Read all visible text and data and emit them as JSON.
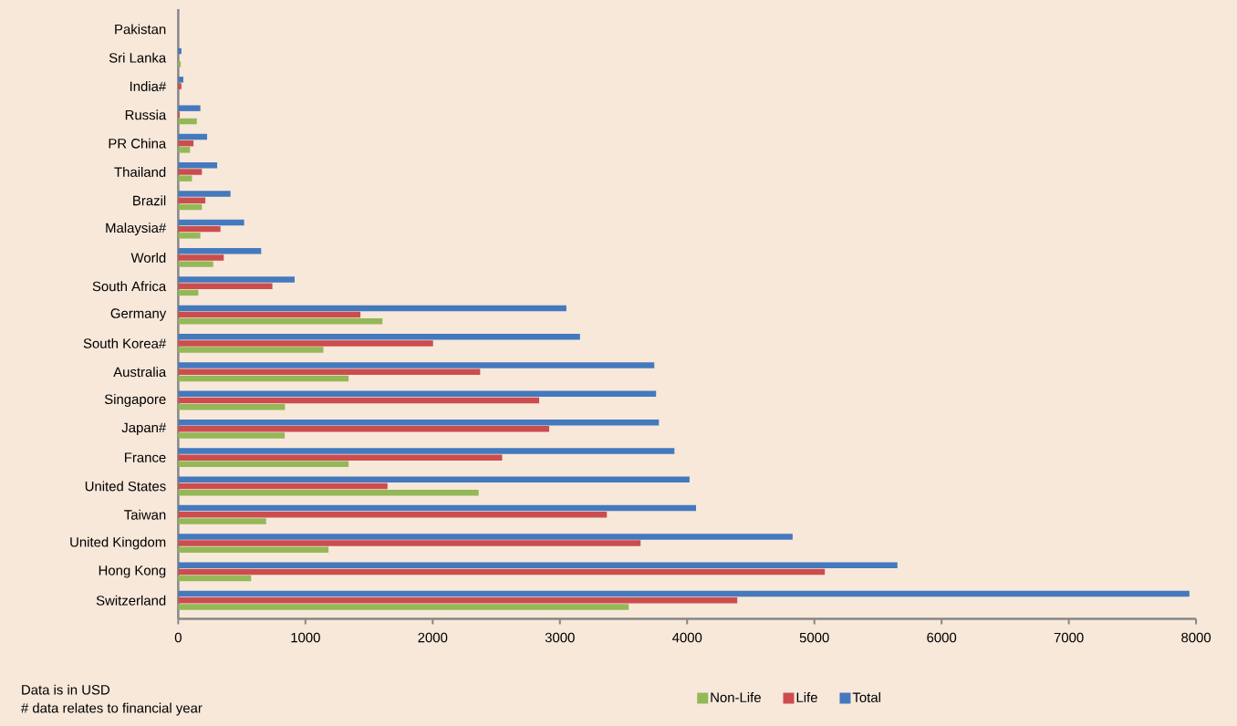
{
  "chart_data": {
    "type": "bar",
    "orientation": "horizontal",
    "categories": [
      "Pakistan",
      "Sri Lanka",
      "India#",
      "Russia",
      "PR China",
      "Thailand",
      "Brazil",
      "Malaysia#",
      "World",
      "South Africa",
      "Germany",
      "South Korea#",
      "Australia",
      "Singapore",
      "Japan#",
      "France",
      "United States",
      "Taiwan",
      "United Kingdom",
      "Hong Kong",
      "Switzerland"
    ],
    "series": [
      {
        "name": "Non-Life",
        "color": "#94b858",
        "values": [
          null,
          20,
          null,
          146,
          93,
          108,
          186,
          174,
          275,
          158,
          1605,
          1141,
          1339,
          839,
          837,
          1339,
          2361,
          691,
          1181,
          573,
          3541
        ]
      },
      {
        "name": "Life",
        "color": "#cc4d4d",
        "values": [
          null,
          null,
          25,
          12,
          120,
          186,
          213,
          332,
          358,
          740,
          1432,
          2003,
          2373,
          2837,
          2916,
          2546,
          1645,
          3369,
          3634,
          5082,
          4394
        ]
      },
      {
        "name": "Total",
        "color": "#4479be",
        "values": [
          null,
          25,
          40,
          174,
          227,
          306,
          411,
          518,
          652,
          915,
          3051,
          3158,
          3742,
          3756,
          3778,
          3900,
          4019,
          4070,
          4829,
          5653,
          7948
        ]
      }
    ],
    "xlim": [
      0,
      8000
    ],
    "xticks": [
      0,
      1000,
      2000,
      3000,
      4000,
      5000,
      6000,
      7000,
      8000
    ],
    "legend": "bottom",
    "annotations": [
      "Data is in USD",
      "# data relates to financial year"
    ]
  }
}
